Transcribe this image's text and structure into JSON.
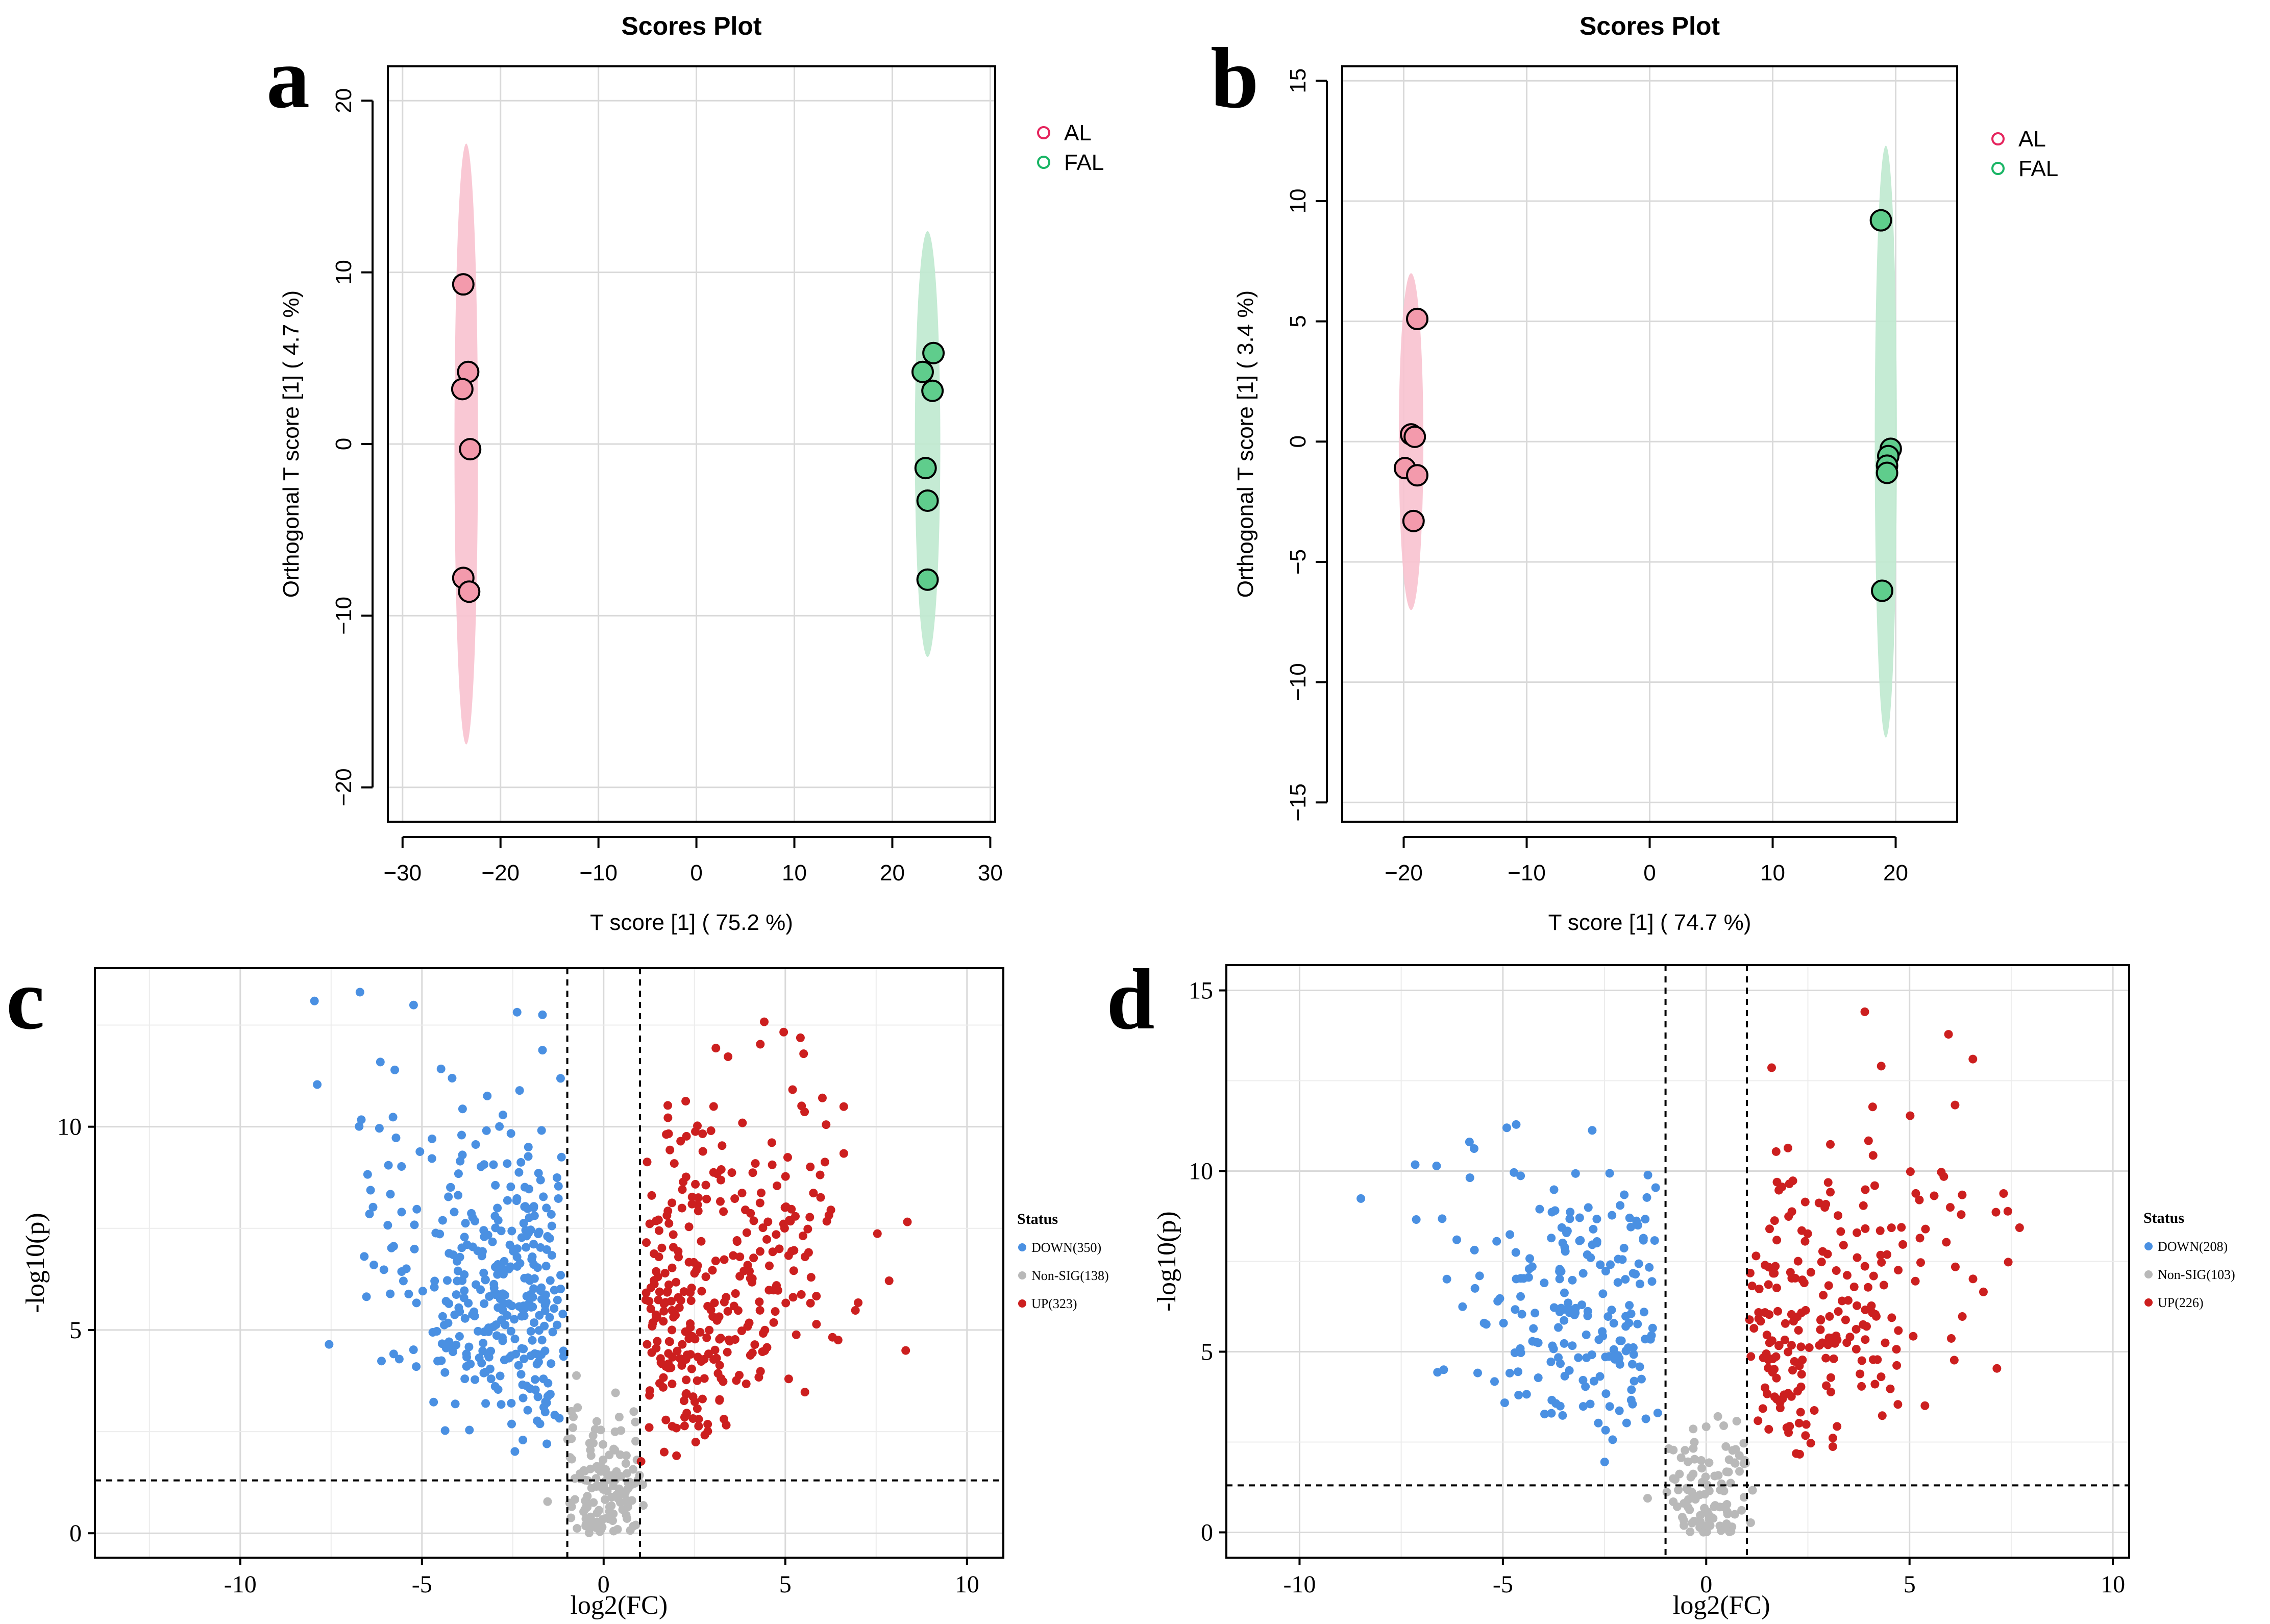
{
  "colors": {
    "al": "#e8718d",
    "al_fill": "#f39aac",
    "al_ellipse": "#f8c2cf",
    "al_legend": "#e5245d",
    "fal": "#2fb86a",
    "fal_fill": "#5fcd8c",
    "fal_ellipse": "#bfe9cf",
    "fal_legend": "#19b565",
    "down": "#4a90e2",
    "nonsig": "#b9b9b9",
    "up": "#cc1f1f",
    "grid": "#d9d9d9",
    "grid_minor": "#ececec"
  },
  "panels": {
    "a": {
      "letter": "a"
    },
    "b": {
      "letter": "b"
    },
    "c": {
      "letter": "c"
    },
    "d": {
      "letter": "d"
    }
  },
  "chart_data": [
    {
      "id": "a",
      "type": "scatter",
      "title": "Scores Plot",
      "xlabel": "T score [1] ( 75.2 %)",
      "ylabel": "Orthogonal T score [1] ( 4.7 %)",
      "xlim": [
        -31.5,
        30.5
      ],
      "ylim": [
        -22,
        22
      ],
      "xticks": [
        -30,
        -20,
        -10,
        0,
        10,
        20,
        30
      ],
      "yticks": [
        -20,
        -10,
        0,
        10,
        20
      ],
      "xtick_labels": [
        "−30",
        "−20",
        "−10",
        "0",
        "10",
        "20",
        "30"
      ],
      "ytick_labels": [
        "−20",
        "−10",
        "0",
        "10",
        "20"
      ],
      "grid": true,
      "legend_position": "top-right",
      "series": [
        {
          "name": "AL",
          "x": [
            -23.8,
            -23.3,
            -23.9,
            -23.1,
            -23.8,
            -23.2
          ],
          "y": [
            9.3,
            4.2,
            3.2,
            -0.3,
            -7.8,
            -8.6
          ],
          "ellipse": {
            "cx": -23.5,
            "cy": 0.0,
            "rx": 1.2,
            "ry": 17.5
          }
        },
        {
          "name": "FAL",
          "x": [
            24.2,
            23.1,
            24.1,
            23.4,
            23.6,
            23.6
          ],
          "y": [
            5.3,
            4.2,
            3.1,
            -1.4,
            -3.3,
            -7.9
          ],
          "ellipse": {
            "cx": 23.6,
            "cy": 0.0,
            "rx": 1.3,
            "ry": 12.4
          }
        }
      ]
    },
    {
      "id": "b",
      "type": "scatter",
      "title": "Scores Plot",
      "xlabel": "T score [1] ( 74.7 %)",
      "ylabel": "Orthogonal T score [1] ( 3.4 %)",
      "xlim": [
        -25,
        25
      ],
      "ylim": [
        -15.8,
        15.6
      ],
      "xticks": [
        -20,
        -10,
        0,
        10,
        20
      ],
      "yticks": [
        -15,
        -10,
        -5,
        0,
        5,
        10,
        15
      ],
      "xtick_labels": [
        "−20",
        "−10",
        "0",
        "10",
        "20"
      ],
      "ytick_labels": [
        "−15",
        "−10",
        "−5",
        "0",
        "5",
        "10",
        "15"
      ],
      "grid": true,
      "legend_position": "top-right",
      "series": [
        {
          "name": "AL",
          "x": [
            -18.9,
            -19.4,
            -19.1,
            -19.9,
            -18.9,
            -19.2
          ],
          "y": [
            5.1,
            0.3,
            0.2,
            -1.1,
            -1.4,
            -3.3
          ],
          "ellipse": {
            "cx": -19.4,
            "cy": 0.0,
            "rx": 1.0,
            "ry": 7.0
          }
        },
        {
          "name": "FAL",
          "x": [
            18.8,
            19.6,
            19.4,
            19.3,
            19.3,
            18.9
          ],
          "y": [
            9.2,
            -0.3,
            -0.6,
            -1.0,
            -1.3,
            -6.2
          ],
          "ellipse": {
            "cx": 19.2,
            "cy": 0.0,
            "rx": 0.9,
            "ry": 12.3
          }
        }
      ]
    },
    {
      "id": "c",
      "type": "scatter",
      "subtype": "volcano",
      "xlabel": "log2(FC)",
      "ylabel": "-log10(p)",
      "xlim": [
        -14,
        11
      ],
      "ylim": [
        -0.6,
        13.9
      ],
      "xticks": [
        -10,
        -5,
        0,
        5,
        10
      ],
      "yticks": [
        0,
        5,
        10
      ],
      "xtick_labels": [
        "-10",
        "-5",
        "0",
        "5",
        "10"
      ],
      "ytick_labels": [
        "0",
        "5",
        "10"
      ],
      "thresholds": {
        "fc_low": -1,
        "fc_high": 1,
        "p": 1.3
      },
      "legend_title": "Status",
      "legend_position": "right",
      "series": [
        {
          "name": "DOWN(350)",
          "count": 350
        },
        {
          "name": "Non-SIG(138)",
          "count": 138
        },
        {
          "name": "UP(323)",
          "count": 323
        }
      ]
    },
    {
      "id": "d",
      "type": "scatter",
      "subtype": "volcano",
      "xlabel": "log2(FC)",
      "ylabel": "-log10(p)",
      "xlim": [
        -11.8,
        10.4
      ],
      "ylim": [
        -0.7,
        15.7
      ],
      "xticks": [
        -10,
        -5,
        0,
        5,
        10
      ],
      "yticks": [
        0,
        5,
        10,
        15
      ],
      "xtick_labels": [
        "-10",
        "-5",
        "0",
        "5",
        "10"
      ],
      "ytick_labels": [
        "0",
        "5",
        "10",
        "15"
      ],
      "thresholds": {
        "fc_low": -1,
        "fc_high": 1,
        "p": 1.3
      },
      "legend_title": "Status",
      "legend_position": "right",
      "series": [
        {
          "name": "DOWN(208)",
          "count": 208
        },
        {
          "name": "Non-SIG(103)",
          "count": 103
        },
        {
          "name": "UP(226)",
          "count": 226
        }
      ]
    }
  ]
}
